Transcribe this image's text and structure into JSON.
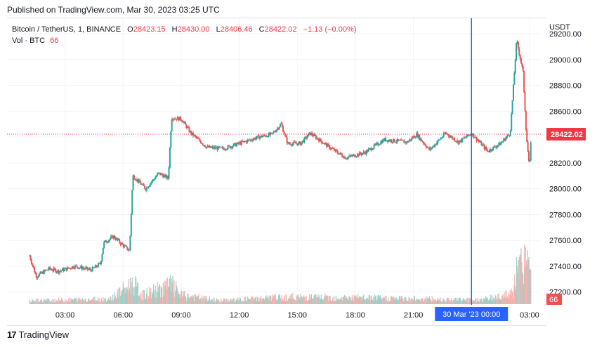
{
  "header": {
    "published": "Published on TradingView.com, Mar 30, 2023 03:25 UTC"
  },
  "legend": {
    "symbol": "Bitcoin / TetherUS, 1, BINANCE",
    "o_label": "O",
    "o_value": "28423.15",
    "h_label": "H",
    "h_value": "28430.00",
    "l_label": "L",
    "l_value": "28406.46",
    "c_label": "C",
    "c_value": "28422.02",
    "change": "−1.13 (−0.00%)",
    "vol_label": "Vol · BTC",
    "vol_value": "66"
  },
  "price_axis": {
    "currency": "USDT",
    "ticks": [
      "29200.00",
      "29000.00",
      "28800.00",
      "28600.00",
      "28400.00",
      "28200.00",
      "28000.00",
      "27800.00",
      "27600.00",
      "27400.00",
      "27200.00"
    ],
    "current_price_label": "28422.02",
    "current_volume_label": "66"
  },
  "time_axis": {
    "ticks": [
      "03:00",
      "06:00",
      "09:00",
      "12:00",
      "15:00",
      "18:00",
      "21:00",
      "03:00"
    ],
    "crosshair_label": "30 Mar '23   00:00"
  },
  "footer": {
    "brand": "TradingView",
    "logo_mark": "17"
  },
  "colors": {
    "up": "#26a69a",
    "down": "#ef5350",
    "crosshair": "#2962ff",
    "price_label_bg": "#f23645",
    "grid": "#f0f3fa"
  },
  "chart_data": {
    "type": "candlestick",
    "title": "Bitcoin / TetherUS, 1, BINANCE",
    "interval": "1 minute",
    "ylim": [
      27100,
      29320
    ],
    "y_ticks": [
      29200,
      29000,
      28800,
      28600,
      28400,
      28200,
      28000,
      27800,
      27600,
      27400,
      27200
    ],
    "x_ticks": [
      "03:00",
      "06:00",
      "09:00",
      "12:00",
      "15:00",
      "18:00",
      "21:00",
      "03:00"
    ],
    "current_price": 28422.02,
    "last_volume": 66,
    "crosshair_time": "30 Mar '23 00:00",
    "price_path": [
      {
        "t": "01:10",
        "p": 27480
      },
      {
        "t": "01:30",
        "p": 27320
      },
      {
        "t": "02:10",
        "p": 27380
      },
      {
        "t": "02:40",
        "p": 27360
      },
      {
        "t": "03:30",
        "p": 27400
      },
      {
        "t": "04:20",
        "p": 27370
      },
      {
        "t": "04:50",
        "p": 27420
      },
      {
        "t": "05:00",
        "p": 27580
      },
      {
        "t": "05:30",
        "p": 27630
      },
      {
        "t": "06:00",
        "p": 27560
      },
      {
        "t": "06:20",
        "p": 27520
      },
      {
        "t": "06:30",
        "p": 28100
      },
      {
        "t": "07:10",
        "p": 28000
      },
      {
        "t": "07:50",
        "p": 28120
      },
      {
        "t": "08:20",
        "p": 28080
      },
      {
        "t": "08:30",
        "p": 28550
      },
      {
        "t": "09:00",
        "p": 28540
      },
      {
        "t": "09:30",
        "p": 28430
      },
      {
        "t": "10:20",
        "p": 28320
      },
      {
        "t": "11:10",
        "p": 28310
      },
      {
        "t": "12:00",
        "p": 28350
      },
      {
        "t": "13:00",
        "p": 28400
      },
      {
        "t": "13:40",
        "p": 28420
      },
      {
        "t": "14:10",
        "p": 28500
      },
      {
        "t": "14:30",
        "p": 28350
      },
      {
        "t": "15:10",
        "p": 28350
      },
      {
        "t": "15:40",
        "p": 28430
      },
      {
        "t": "16:40",
        "p": 28320
      },
      {
        "t": "17:30",
        "p": 28240
      },
      {
        "t": "18:30",
        "p": 28280
      },
      {
        "t": "19:30",
        "p": 28380
      },
      {
        "t": "20:40",
        "p": 28360
      },
      {
        "t": "21:10",
        "p": 28420
      },
      {
        "t": "21:50",
        "p": 28300
      },
      {
        "t": "22:40",
        "p": 28430
      },
      {
        "t": "23:20",
        "p": 28360
      },
      {
        "t": "00:00",
        "p": 28430
      },
      {
        "t": "00:50",
        "p": 28290
      },
      {
        "t": "01:30",
        "p": 28350
      },
      {
        "t": "02:00",
        "p": 28430
      },
      {
        "t": "02:20",
        "p": 29150
      },
      {
        "t": "02:40",
        "p": 28900
      },
      {
        "t": "02:50",
        "p": 28420
      },
      {
        "t": "03:00",
        "p": 28150
      },
      {
        "t": "03:05",
        "p": 28422
      }
    ],
    "volume_path": [
      {
        "t": "01:10",
        "v": 10
      },
      {
        "t": "05:20",
        "v": 15
      },
      {
        "t": "06:30",
        "v": 60
      },
      {
        "t": "07:00",
        "v": 25
      },
      {
        "t": "08:30",
        "v": 55
      },
      {
        "t": "09:00",
        "v": 25
      },
      {
        "t": "11:00",
        "v": 10
      },
      {
        "t": "14:30",
        "v": 20
      },
      {
        "t": "18:00",
        "v": 18
      },
      {
        "t": "21:10",
        "v": 15
      },
      {
        "t": "00:30",
        "v": 12
      },
      {
        "t": "02:10",
        "v": 30
      },
      {
        "t": "02:20",
        "v": 90
      },
      {
        "t": "02:50",
        "v": 140
      },
      {
        "t": "03:05",
        "v": 66
      }
    ]
  }
}
